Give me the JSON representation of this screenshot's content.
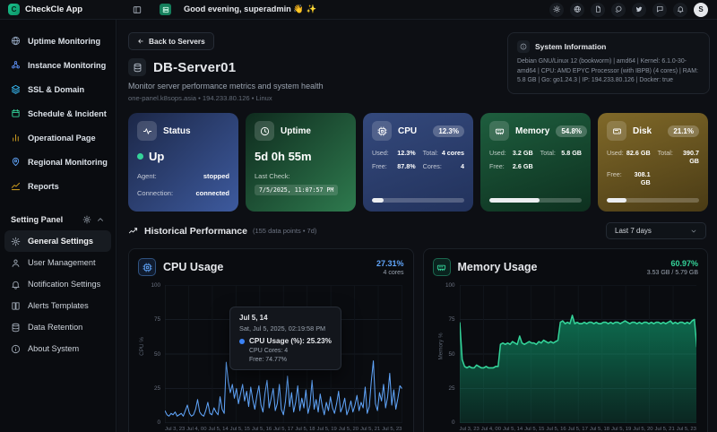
{
  "topbar": {
    "app_name": "CheckCle App",
    "greeting": "Good evening, superadmin 👋 ✨",
    "avatar_initial": "S"
  },
  "sidebar": {
    "items": [
      {
        "label": "Uptime Monitoring",
        "icon": "globe-icon"
      },
      {
        "label": "Instance Monitoring",
        "icon": "nodes-icon"
      },
      {
        "label": "SSL & Domain",
        "icon": "layers-icon"
      },
      {
        "label": "Schedule & Incident",
        "icon": "calendar-icon"
      },
      {
        "label": "Operational Page",
        "icon": "bar-chart-icon"
      },
      {
        "label": "Regional Monitoring",
        "icon": "map-pin-icon"
      },
      {
        "label": "Reports",
        "icon": "trend-icon"
      }
    ],
    "section_label": "Setting Panel",
    "settings_items": [
      {
        "label": "General Settings",
        "icon": "gear-icon",
        "active": true
      },
      {
        "label": "User Management",
        "icon": "user-icon"
      },
      {
        "label": "Notification Settings",
        "icon": "bell-icon"
      },
      {
        "label": "Alerts Templates",
        "icon": "book-icon"
      },
      {
        "label": "Data Retention",
        "icon": "database-icon"
      },
      {
        "label": "About System",
        "icon": "info-icon"
      }
    ]
  },
  "page": {
    "back_label": "Back to Servers",
    "title": "DB-Server01",
    "subtitle": "Monitor server performance metrics and system health",
    "meta": "one-panel.k8sops.asia • 194.233.80.126 • Linux"
  },
  "system_info": {
    "title": "System Information",
    "details": "Debian GNU/Linux 12 (bookworm) | amd64 | Kernel: 6.1.0-30-amd64 | CPU: AMD EPYC Processor (with IBPB) (4 cores) | RAM: 5.8 GB | Go: go1.24.3 | IP: 194.233.80.126 | Docker: true"
  },
  "cards": {
    "status": {
      "label": "Status",
      "value": "Up",
      "rows": [
        {
          "k": "Agent:",
          "v": "stopped"
        },
        {
          "k": "Connection:",
          "v": "connected"
        }
      ]
    },
    "uptime": {
      "label": "Uptime",
      "value": "5d 0h 55m",
      "last_check_label": "Last Check:",
      "last_check": "7/5/2025, 11:07:57 PM"
    },
    "cpu": {
      "label": "CPU",
      "badge": "12.3%",
      "percent": 12.3,
      "used_label": "Used:",
      "used": "12.3%",
      "total_label": "Total:",
      "total": "4 cores",
      "free_label": "Free:",
      "free": "87.8%",
      "cores_label": "Cores:",
      "cores": "4"
    },
    "memory": {
      "label": "Memory",
      "badge": "54.8%",
      "percent": 54.8,
      "used_label": "Used:",
      "used": "3.2 GB",
      "total_label": "Total:",
      "total": "5.8 GB",
      "free_label": "Free:",
      "free": "2.6 GB"
    },
    "disk": {
      "label": "Disk",
      "badge": "21.1%",
      "percent": 21.1,
      "used_label": "Used:",
      "used": "82.6 GB",
      "total_label": "Total:",
      "total": "390.7 GB",
      "free_label": "Free:",
      "free": "308.1 GB"
    }
  },
  "historical": {
    "title": "Historical Performance",
    "meta": "(155 data points • 7d)",
    "range": "Last 7 days"
  },
  "cpu_chart": {
    "title": "CPU Usage",
    "pct": "27.31%",
    "sub": "4 cores"
  },
  "memory_chart": {
    "title": "Memory Usage",
    "pct": "60.97%",
    "sub": "3.53 GB / 5.79 GB"
  },
  "tooltip": {
    "title": "Jul 5, 14",
    "date": "Sat, Jul 5, 2025, 02:19:58 PM",
    "main": "CPU Usage (%): 25.23%",
    "line2": "CPU Cores: 4",
    "line3": "Free: 74.77%"
  },
  "chart_data": [
    {
      "type": "line",
      "title": "CPU Usage",
      "xlabel": "",
      "ylabel": "CPU %",
      "ylim": [
        0,
        100
      ],
      "yticks": [
        0,
        25,
        50,
        75,
        100
      ],
      "grid": true,
      "xticks": [
        "Jul 3, 23",
        "Jul 4, 00",
        "Jul 5, 14",
        "Jul 5, 15",
        "Jul 5, 16",
        "Jul 5, 17",
        "Jul 5, 18",
        "Jul 5, 19",
        "Jul 5, 20",
        "Jul 5, 21",
        "Jul 5, 23"
      ],
      "series": [
        {
          "name": "CPU Usage (%)",
          "color": "#60a5fa",
          "values": [
            9,
            6,
            5,
            7,
            6,
            8,
            5,
            6,
            7,
            5,
            9,
            13,
            7,
            5,
            6,
            10,
            17,
            8,
            6,
            5,
            9,
            15,
            7,
            6,
            11,
            8,
            6,
            19,
            10,
            7,
            44,
            30,
            22,
            28,
            18,
            25,
            14,
            21,
            28,
            16,
            23,
            12,
            26,
            17,
            10,
            20,
            27,
            13,
            8,
            22,
            31,
            11,
            18,
            25,
            9,
            14,
            28,
            10,
            6,
            16,
            34,
            12,
            22,
            8,
            15,
            27,
            9,
            18,
            11,
            24,
            7,
            13,
            31,
            10,
            17,
            8,
            21,
            12,
            6,
            15,
            9,
            19,
            11,
            7,
            14,
            23,
            8,
            12,
            18,
            6,
            10,
            16,
            8,
            13,
            20,
            9,
            15,
            11,
            26,
            7,
            12,
            30,
            45,
            14,
            9,
            22,
            16,
            28,
            11,
            19,
            36,
            13,
            24,
            10,
            18,
            27,
            25
          ]
        }
      ]
    },
    {
      "type": "area",
      "title": "Memory Usage",
      "xlabel": "",
      "ylabel": "Memory %",
      "ylim": [
        0,
        100
      ],
      "yticks": [
        0,
        25,
        50,
        75,
        100
      ],
      "grid": true,
      "xticks": [
        "Jul 3, 23",
        "Jul 4, 00",
        "Jul 5, 14",
        "Jul 5, 15",
        "Jul 5, 16",
        "Jul 5, 17",
        "Jul 5, 18",
        "Jul 5, 19",
        "Jul 5, 20",
        "Jul 5, 21",
        "Jul 5, 23"
      ],
      "series": [
        {
          "name": "Memory Usage (%)",
          "color": "#34d399",
          "values": [
            73,
            46,
            41,
            40,
            41,
            40,
            40,
            42,
            41,
            40,
            40,
            41,
            40,
            40,
            40,
            41,
            41,
            57,
            58,
            57,
            58,
            57,
            59,
            58,
            57,
            63,
            58,
            57,
            58,
            59,
            58,
            58,
            57,
            59,
            58,
            60,
            59,
            58,
            59,
            58,
            59,
            60,
            73,
            74,
            72,
            73,
            72,
            78,
            72,
            73,
            72,
            72,
            73,
            72,
            73,
            73,
            72,
            73,
            72,
            72,
            73,
            73,
            72,
            73,
            72,
            73,
            73,
            72,
            73,
            74,
            73,
            72,
            73,
            73,
            72,
            73,
            72,
            73,
            73,
            72,
            73,
            72,
            73,
            73,
            72,
            73,
            72,
            73,
            74,
            72,
            73,
            72,
            73,
            73,
            72,
            73,
            72,
            74,
            75,
            55
          ]
        }
      ]
    }
  ]
}
